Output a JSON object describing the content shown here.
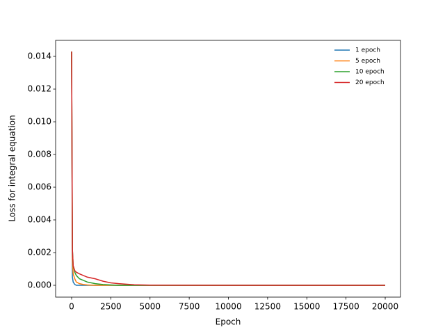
{
  "chart_data": {
    "type": "line",
    "xlabel": "Epoch",
    "ylabel": "Loss for integral equation",
    "x": [
      0,
      50,
      100,
      200,
      300,
      500,
      750,
      1000,
      1500,
      2000,
      2500,
      3000,
      4000,
      5000,
      10000,
      15000,
      20000
    ],
    "series": [
      {
        "name": "1 epoch",
        "color": "#1f77b4",
        "values": [
          0.0143,
          0.0005,
          0.0002,
          5e-05,
          0,
          0,
          0,
          0,
          0,
          0,
          0,
          0,
          0,
          0,
          0,
          0,
          0
        ]
      },
      {
        "name": "5 epoch",
        "color": "#ff7f0e",
        "values": [
          0.0143,
          0.0015,
          0.0007,
          0.0004,
          0.0002,
          0.0001,
          5e-05,
          2e-05,
          0,
          0,
          0,
          0,
          0,
          0,
          0,
          0,
          0
        ]
      },
      {
        "name": "10 epoch",
        "color": "#2ca02c",
        "values": [
          0.0143,
          0.0022,
          0.0012,
          0.0008,
          0.0006,
          0.0004,
          0.0003,
          0.0002,
          0.0001,
          5e-05,
          2e-05,
          0,
          0,
          0,
          0,
          0,
          0
        ]
      },
      {
        "name": "20 epoch",
        "color": "#d62728",
        "values": [
          0.0143,
          0.0022,
          0.0012,
          0.0009,
          0.0008,
          0.0007,
          0.0006,
          0.0005,
          0.0004,
          0.00025,
          0.00015,
          0.0001,
          3e-05,
          1e-05,
          0,
          0,
          0
        ]
      }
    ],
    "xlim": [
      -1020,
      20975
    ],
    "ylim": [
      -0.000723,
      0.01498
    ],
    "xticks": [
      0,
      2500,
      5000,
      7500,
      10000,
      12500,
      15000,
      17500,
      20000
    ],
    "yticks": [
      {
        "value": 0,
        "label": "0.000"
      },
      {
        "value": 0.002,
        "label": "0.002"
      },
      {
        "value": 0.004,
        "label": "0.004"
      },
      {
        "value": 0.006,
        "label": "0.006"
      },
      {
        "value": 0.008,
        "label": "0.008"
      },
      {
        "value": 0.01,
        "label": "0.010"
      },
      {
        "value": 0.012,
        "label": "0.012"
      },
      {
        "value": 0.014,
        "label": "0.014"
      }
    ],
    "legend": "upper right"
  }
}
